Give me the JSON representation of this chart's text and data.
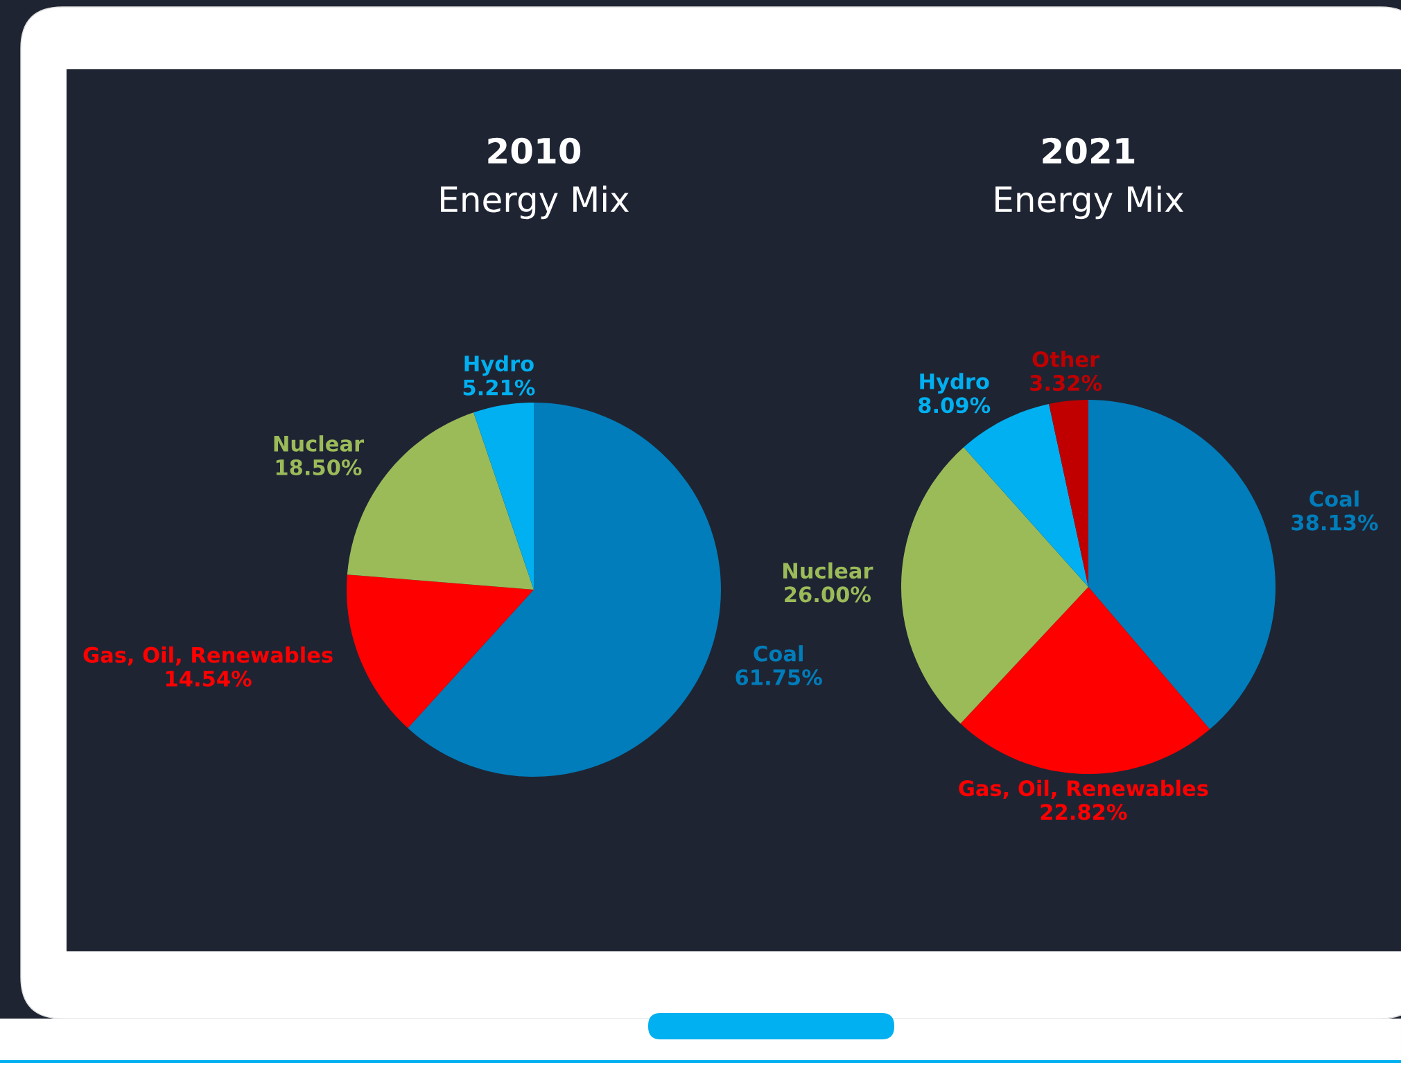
{
  "chart_data": [
    {
      "type": "pie",
      "title": "2010",
      "subtitle": "Energy Mix",
      "categories": [
        "Coal",
        "Gas, Oil, Renewables",
        "Nuclear",
        "Hydro"
      ],
      "values": [
        61.75,
        14.54,
        18.5,
        5.21
      ],
      "value_labels": [
        "61.75%",
        "14.54%",
        "18.50%",
        "5.21%"
      ],
      "colors": [
        "#007dba",
        "#ff0000",
        "#9bbb59",
        "#00b0f0"
      ]
    },
    {
      "type": "pie",
      "title": "2021",
      "subtitle": "Energy Mix",
      "categories": [
        "Coal",
        "Gas, Oil, Renewables",
        "Nuclear",
        "Hydro",
        "Other"
      ],
      "values": [
        38.13,
        22.82,
        26.0,
        8.09,
        3.32
      ],
      "value_labels": [
        "38.13%",
        "22.82%",
        "26.00%",
        "8.09%",
        "3.32%"
      ],
      "colors": [
        "#007dba",
        "#ff0000",
        "#9bbb59",
        "#00b0f0",
        "#c00000"
      ]
    }
  ]
}
